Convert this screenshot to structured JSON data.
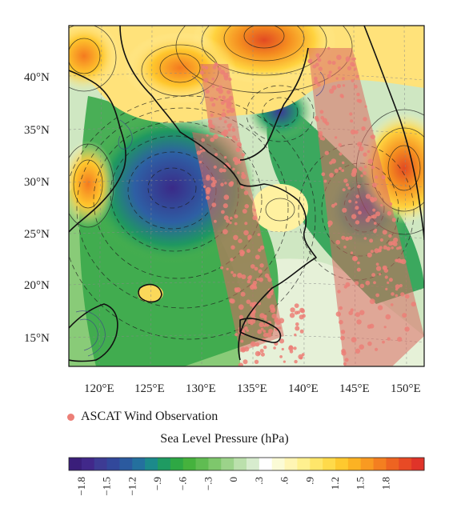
{
  "map": {
    "latitude_labels": [
      "40°N",
      "35°N",
      "30°N",
      "25°N",
      "20°N",
      "15°N"
    ],
    "longitude_labels": [
      "120°E",
      "125°E",
      "130°E",
      "135°E",
      "140°E",
      "145°E",
      "150°E"
    ],
    "point_color": "#ec7f77",
    "coast_color": "#111111"
  },
  "legend": {
    "observation_label": "ASCAT Wind Observation",
    "observation_color": "#ec7f77"
  },
  "colorbar": {
    "title": "Sea Level Pressure (hPa)",
    "tick_labels": [
      "−1.8",
      "−1.5",
      "−1.2",
      "−.9",
      "−.6",
      "−.3",
      "0",
      ".3",
      ".6",
      ".9",
      "1.2",
      "1.5",
      "1.8"
    ],
    "colors": [
      "#3a1e7a",
      "#41288a",
      "#3d3b94",
      "#32489b",
      "#2b5a9f",
      "#24709e",
      "#1c8a8b",
      "#1f9b62",
      "#2ea844",
      "#45b23d",
      "#60bc52",
      "#7ec76c",
      "#9cd38a",
      "#bbe0ac",
      "#d7ecce",
      "#ffffff",
      "#fbfbd6",
      "#fff5b4",
      "#fff08f",
      "#ffe66a",
      "#ffda4a",
      "#fec92f",
      "#fcb223",
      "#f99a21",
      "#f47f20",
      "#ee6421",
      "#e84a25",
      "#e03429"
    ]
  }
}
